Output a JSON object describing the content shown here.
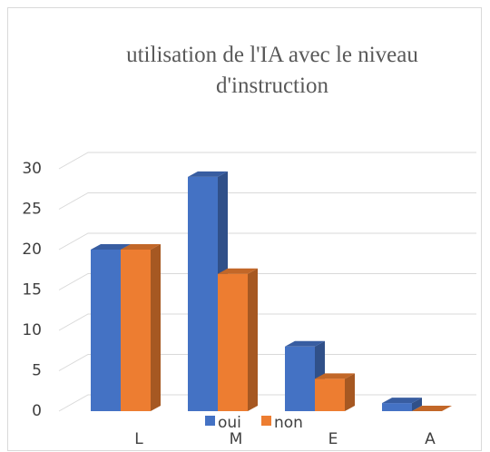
{
  "chart_data": {
    "type": "bar3d",
    "title": "utilisation de l'IA avec le niveau d'instruction",
    "categories": [
      "L",
      "M",
      "E",
      "A"
    ],
    "series": [
      {
        "name": "oui",
        "color": "#4472c4",
        "values": [
          20,
          29,
          8,
          1
        ]
      },
      {
        "name": "non",
        "color": "#ed7d31",
        "values": [
          20,
          17,
          4,
          0
        ]
      }
    ],
    "ylim": [
      0,
      30
    ],
    "yticks": [
      0,
      5,
      10,
      15,
      20,
      25,
      30
    ],
    "grid": true,
    "legend": "bottom"
  }
}
